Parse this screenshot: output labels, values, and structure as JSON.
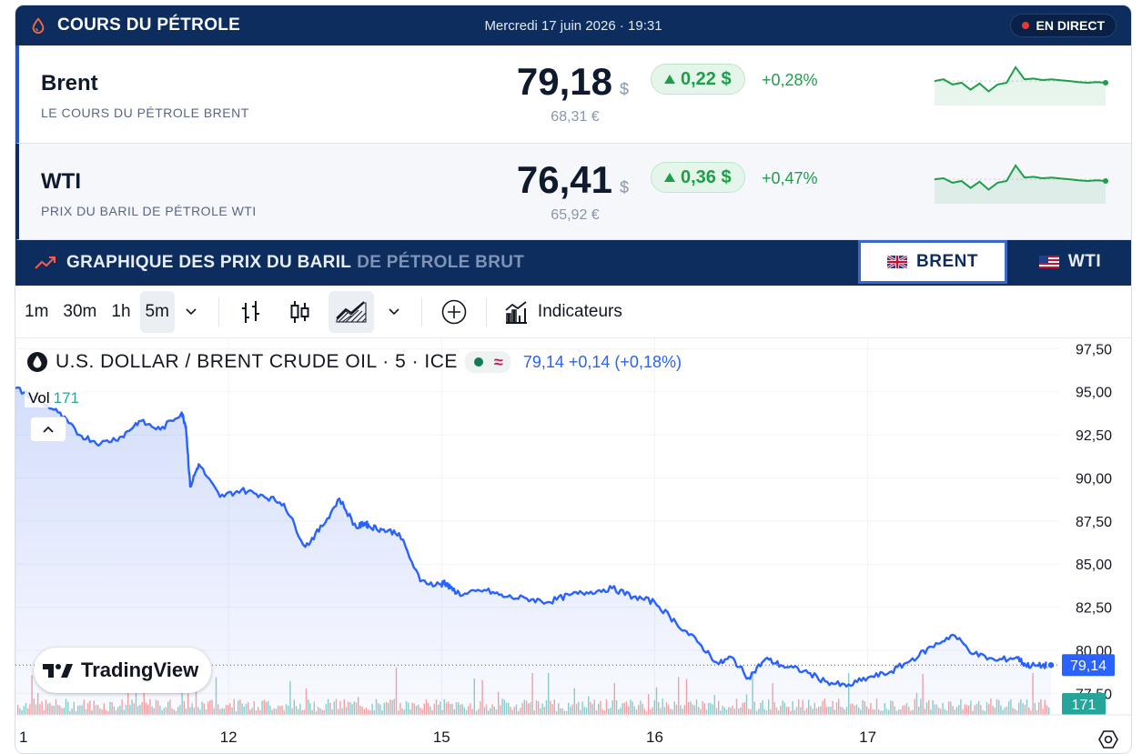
{
  "header": {
    "title": "COURS DU PÉTROLE",
    "date": "Mercredi 17 juin 2026 · 19:31",
    "live_label": "EN DIRECT"
  },
  "quotes": [
    {
      "name": "Brent",
      "subtitle": "LE COURS DU PÉTROLE BRENT",
      "price": "79,18",
      "currency": "$",
      "price_eur": "68,31 €",
      "change": "0,22 $",
      "change_pct": "+0,28%",
      "sparkline": [
        0.55,
        0.6,
        0.45,
        0.5,
        0.3,
        0.48,
        0.25,
        0.45,
        0.5,
        0.95,
        0.6,
        0.62,
        0.58,
        0.6,
        0.57,
        0.55,
        0.52,
        0.5,
        0.52,
        0.5
      ]
    },
    {
      "name": "WTI",
      "subtitle": "PRIX DU BARIL DE PÉTROLE WTI",
      "price": "76,41",
      "currency": "$",
      "price_eur": "65,92 €",
      "change": "0,36 $",
      "change_pct": "+0,47%",
      "sparkline": [
        0.55,
        0.58,
        0.45,
        0.5,
        0.3,
        0.48,
        0.25,
        0.45,
        0.5,
        0.95,
        0.6,
        0.62,
        0.58,
        0.6,
        0.57,
        0.55,
        0.52,
        0.5,
        0.52,
        0.5
      ]
    }
  ],
  "graph": {
    "title_main": "GRAPHIQUE DES PRIX DU BARIL",
    "title_rest": "DE PÉTROLE BRUT",
    "tabs": [
      "BRENT",
      "WTI"
    ],
    "active_tab": "BRENT"
  },
  "toolbar": {
    "intervals": [
      "1m",
      "30m",
      "1h",
      "5m"
    ],
    "active_interval": "5m",
    "icons": [
      "chevron-down-icon",
      "bar-chart-icon",
      "candle-icon",
      "area-chart-icon",
      "chevron-down-icon",
      "plus-circle-icon",
      "indicators-icon"
    ],
    "indicators_label": "Indicateurs"
  },
  "legend": {
    "symbol": "U.S. DOLLAR / BRENT CRUDE OIL · 5 · ICE",
    "wave": "≈",
    "last": "79,14",
    "change": "+0,14 (+0,18%)",
    "vol_label": "Vol",
    "vol_value": "171"
  },
  "tv_logo": "TradingView",
  "colors": {
    "navy": "#0d2d5e",
    "line": "#2962ff",
    "up": "#1e9e4b",
    "vol_up": "#26a69a",
    "vol_down": "#ef5350"
  },
  "chart_data": {
    "type": "area",
    "title": "U.S. DOLLAR / BRENT CRUDE OIL · 5 · ICE",
    "xlabel": "",
    "ylabel": "",
    "ylim": [
      76.25,
      98.1
    ],
    "y_ticks": [
      "77,50",
      "80,00",
      "82,50",
      "85,00",
      "87,50",
      "90,00",
      "92,50",
      "95,00",
      "97,50"
    ],
    "y_tick_values": [
      77.5,
      80,
      82.5,
      85,
      87.5,
      90,
      92.5,
      95,
      97.5
    ],
    "x_ticks": [
      "1",
      "12",
      "15",
      "16",
      "17"
    ],
    "x_tick_positions": [
      0,
      5,
      10,
      15,
      20
    ],
    "xlim": [
      0,
      24.3
    ],
    "last_price_label": "79,14",
    "last_price": 79.14,
    "volume_label": "171",
    "series": [
      {
        "x": [
          0,
          0.5,
          1.0,
          1.5,
          2.0,
          2.5,
          2.9,
          3.4,
          3.9,
          4.0,
          4.1,
          4.3,
          4.8,
          5.3,
          5.8,
          6.3,
          6.8,
          7.2,
          7.6,
          8.0,
          8.2,
          8.3,
          8.6,
          9.0,
          9.5,
          10.0,
          10.05,
          10.2,
          10.5,
          11.0,
          11.5,
          12.0,
          12.5,
          13.0,
          13.5,
          14.0,
          14.5,
          15.0,
          15.5,
          16.0,
          16.5,
          16.8,
          17.2,
          17.6,
          18.0,
          18.5,
          19.0,
          19.5,
          20.0,
          20.5,
          21.0,
          21.5,
          22.0,
          22.5,
          23.0,
          23.5,
          23.7,
          24.0,
          24.3
        ],
        "y": [
          95.2,
          94.6,
          93.8,
          92.5,
          92.0,
          92.4,
          93.3,
          92.8,
          93.8,
          93.0,
          89.5,
          90.8,
          88.9,
          89.3,
          89.0,
          88.5,
          86.0,
          87.2,
          88.8,
          87.1,
          87.4,
          87.2,
          87.0,
          86.8,
          84.0,
          83.8,
          84.0,
          83.6,
          83.2,
          83.5,
          83.1,
          83.0,
          82.8,
          83.2,
          83.4,
          83.6,
          83.1,
          82.8,
          81.6,
          80.5,
          79.2,
          79.6,
          78.4,
          79.5,
          79.1,
          78.8,
          78.2,
          77.9,
          78.4,
          78.7,
          79.4,
          80.2,
          80.9,
          79.8,
          79.4,
          79.6,
          79.14,
          79.1,
          79.14
        ]
      }
    ]
  }
}
